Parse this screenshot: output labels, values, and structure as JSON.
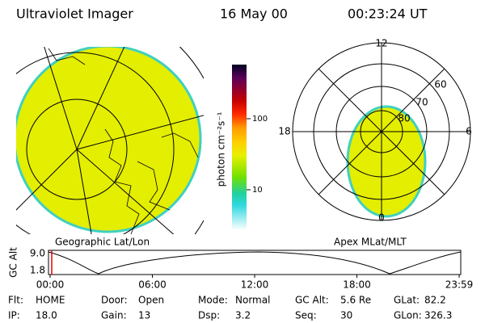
{
  "header": {
    "title": "Ultraviolet Imager",
    "date": "16 May 00",
    "time": "00:23:24 UT"
  },
  "left_panel": {
    "caption": "Geographic Lat/Lon"
  },
  "colorbar": {
    "label": "photon cm⁻²s⁻¹",
    "ticks": [
      "100",
      "10"
    ]
  },
  "right_panel": {
    "caption": "Apex MLat/MLT",
    "mlt_labels": [
      "12",
      "18",
      "6",
      "0"
    ],
    "lat_labels": [
      "60",
      "70",
      "80"
    ]
  },
  "altitude_plot": {
    "axis_label": "GC Alt",
    "yticks": [
      "9.0",
      "1.8"
    ],
    "xticks": [
      "00:00",
      "06:00",
      "12:00",
      "18:00",
      "23:59"
    ]
  },
  "status": [
    [
      {
        "label": "Flt:",
        "value": "HOME"
      },
      {
        "label": "Door:",
        "value": "Open"
      },
      {
        "label": "Mode:",
        "value": "Normal"
      },
      {
        "label": "GC Alt:",
        "value": "5.6 Re"
      },
      {
        "label": "GLat:",
        "value": "82.2"
      }
    ],
    [
      {
        "label": "IP:",
        "value": "18.0"
      },
      {
        "label": "Gain:",
        "value": "13"
      },
      {
        "label": "Dsp:",
        "value": "3.2"
      },
      {
        "label": "Seq:",
        "value": "30"
      },
      {
        "label": "GLon:",
        "value": "326.3"
      }
    ]
  ]
}
